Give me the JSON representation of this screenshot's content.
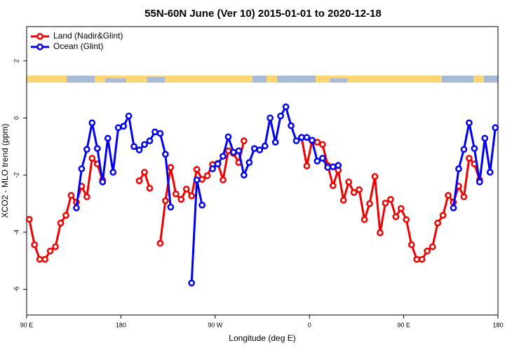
{
  "chart_data": {
    "type": "line",
    "title": "55N-60N June (Ver 10)   2015-01-01 to 2020-12-18",
    "x_label": "Longitude (deg E)",
    "y_label": "XCO2 - MLO trend (ppm)",
    "x": [
      92.5,
      97.5,
      102.5,
      107.5,
      112.5,
      117.5,
      122.5,
      127.5,
      132.5,
      137.5,
      142.5,
      147.5,
      152.5,
      157.5,
      162.5,
      167.5,
      172.5,
      177.5,
      182.5,
      187.5,
      192.5,
      197.5,
      202.5,
      207.5,
      212.5,
      217.5,
      222.5,
      227.5,
      232.5,
      237.5,
      242.5,
      247.5,
      252.5,
      257.5,
      262.5,
      267.5,
      272.5,
      277.5,
      282.5,
      287.5,
      292.5,
      297.5,
      302.5,
      307.5,
      312.5,
      317.5,
      322.5,
      327.5,
      332.5,
      337.5,
      342.5,
      347.5,
      352.5,
      357.5,
      362.5,
      367.5,
      372.5,
      377.5,
      382.5,
      387.5,
      392.5,
      397.5,
      402.5,
      407.5,
      412.5,
      417.5,
      422.5,
      427.5,
      432.5,
      437.5,
      442.5,
      447.5,
      452.5,
      457.5,
      462.5,
      467.5,
      472.5,
      477.5,
      482.5,
      487.5,
      492.5,
      497.5,
      502.5,
      507.5,
      512.5,
      517.5,
      522.5,
      527.5,
      532.5,
      537.5
    ],
    "series": [
      {
        "name": "Land (Nadir&Glint)",
        "color": "#ee0000",
        "values": [
          -3.55,
          -4.44,
          -4.95,
          -4.95,
          -4.66,
          -4.51,
          -3.68,
          -3.41,
          -2.71,
          -2.95,
          -2.39,
          -2.76,
          -1.41,
          -1.61,
          -2.17,
          null,
          null,
          null,
          null,
          null,
          null,
          -2.2,
          -1.9,
          -2.46,
          null,
          -4.39,
          -2.9,
          -1.73,
          -2.66,
          -2.85,
          -2.49,
          -2.73,
          -1.8,
          -2.15,
          -2.02,
          -1.63,
          -1.59,
          -2.17,
          -1.15,
          -1.24,
          -1.56,
          -0.8,
          null,
          null,
          null,
          null,
          null,
          null,
          null,
          null,
          null,
          null,
          -0.68,
          -1.68,
          -0.8,
          -0.85,
          -0.93,
          -1.66,
          -2.37,
          -1.83,
          -2.88,
          -2.24,
          -2.61,
          -2.51,
          -3.56,
          -3.0,
          -2.05,
          -4.02,
          -2.98,
          -2.85,
          -3.46,
          -3.17,
          -3.56,
          -4.44,
          -4.95,
          -4.95,
          -4.66,
          -4.51,
          -3.68,
          -3.41,
          -2.71,
          -2.95,
          -2.39,
          -2.76,
          -1.41,
          -1.61,
          -2.17,
          null,
          null,
          null
        ]
      },
      {
        "name": "Ocean (Glint)",
        "color": "#0000ee",
        "values": [
          null,
          null,
          null,
          null,
          null,
          null,
          null,
          null,
          null,
          -3.15,
          -1.78,
          -1.1,
          -0.17,
          -1.07,
          -2.24,
          -0.71,
          -1.9,
          -0.34,
          -0.29,
          0.07,
          -1.0,
          -1.12,
          -0.93,
          -0.8,
          -0.49,
          -0.54,
          -1.27,
          -3.12,
          null,
          null,
          null,
          -5.78,
          -2.17,
          -3.05,
          null,
          -1.78,
          -1.61,
          -1.34,
          -0.66,
          -1.2,
          -1.15,
          -2.0,
          -1.56,
          -1.07,
          -1.12,
          -0.98,
          0.0,
          -0.85,
          0.07,
          0.39,
          -0.27,
          -0.8,
          -0.68,
          -0.68,
          -0.78,
          -1.51,
          -1.41,
          -1.73,
          -1.71,
          -1.66,
          null,
          null,
          null,
          null,
          null,
          null,
          null,
          null,
          null,
          null,
          null,
          null,
          null,
          null,
          null,
          null,
          null,
          null,
          null,
          null,
          null,
          -3.15,
          -1.78,
          -1.1,
          -0.17,
          -1.07,
          -2.24,
          -0.71,
          -1.9,
          -0.34
        ]
      }
    ],
    "xlim": [
      90,
      540
    ],
    "ylim": [
      -6.9,
      3.2
    ],
    "xticks": [
      {
        "value": 90,
        "label": "90 E"
      },
      180,
      {
        "value": 270,
        "label": "90 W"
      },
      {
        "value": 360,
        "label": "0"
      },
      {
        "value": 450,
        "label": "90 E"
      },
      {
        "value": 540,
        "label": "180"
      }
    ],
    "yticks": [
      -6,
      -4,
      -2,
      0,
      2
    ],
    "legend": "top-left"
  }
}
